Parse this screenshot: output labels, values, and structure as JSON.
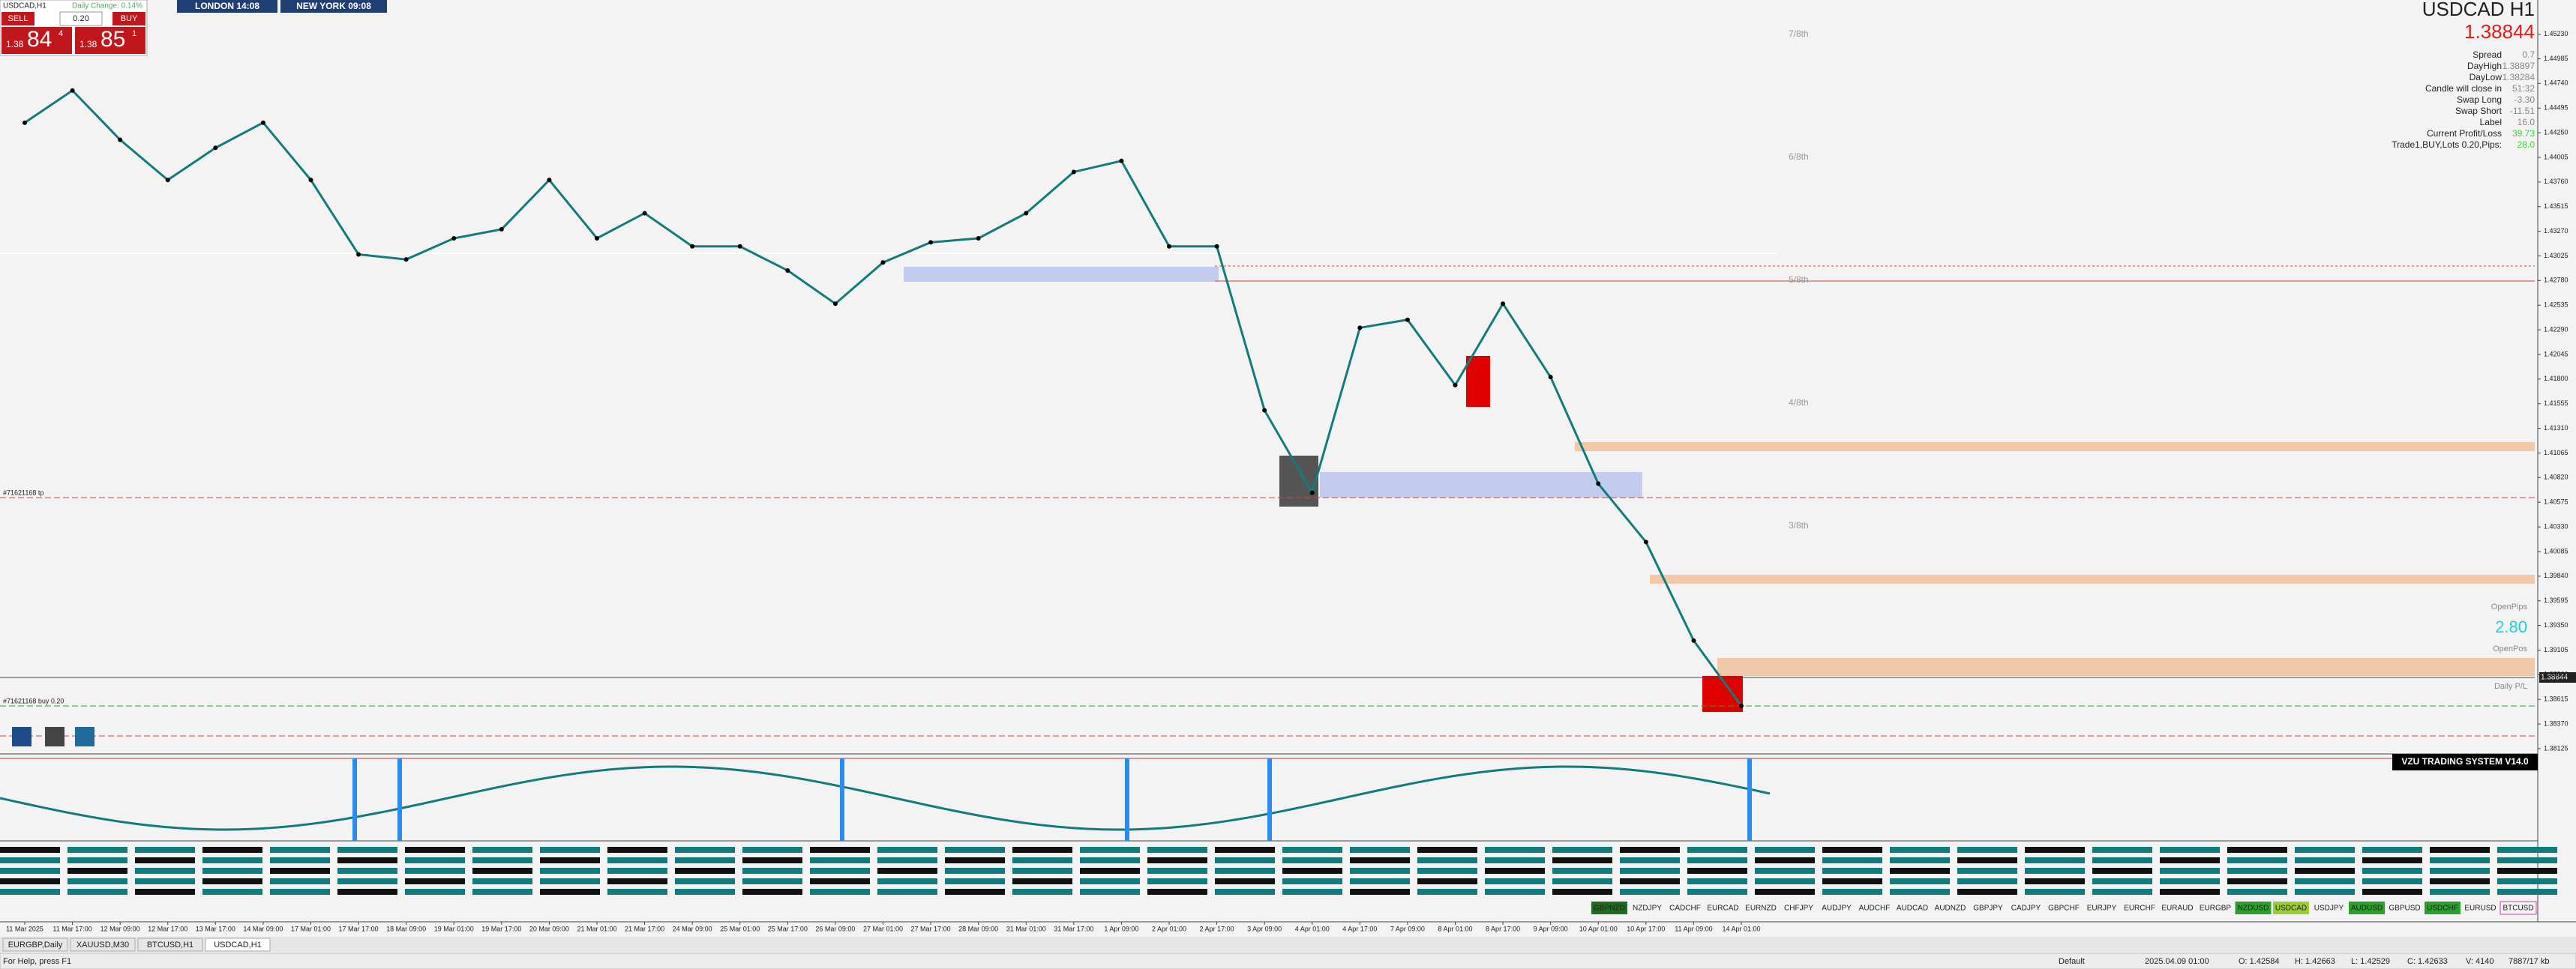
{
  "trade_panel": {
    "symbol": "USDCAD,H1",
    "daily_change": "Daily Change: 0.14%",
    "sell": "SELL",
    "buy": "BUY",
    "lots": "0.20",
    "sell_price": {
      "big": "1.38",
      "pips": "84",
      "point": "4"
    },
    "buy_price": {
      "big": "1.38",
      "pips": "85",
      "point": "1"
    }
  },
  "sessions": [
    "LONDON  14:08",
    "NEW YORK  09:08"
  ],
  "info": {
    "title": "USDCAD H1",
    "price": "1.38844",
    "rows": [
      [
        "Spread",
        "0.7"
      ],
      [
        "DayHigh",
        "1.38897"
      ],
      [
        "DayLow",
        "1.38284"
      ],
      [
        "Candle will close in",
        "51:32"
      ],
      [
        "Swap Long",
        "-3.30"
      ],
      [
        "Swap Short",
        "-11.51"
      ],
      [
        "Label",
        "16.0"
      ],
      [
        "Current Profit/Loss",
        "39.73"
      ],
      [
        "Trade1,BUY,Lots 0.20,Pips:",
        "28.0"
      ]
    ]
  },
  "fib_labels": [
    "7/8th",
    "6/8th",
    "5/8th",
    "4/8th",
    "3/8th"
  ],
  "order_labels": [
    "#71621168 tp",
    "#71621168 buy 0.20"
  ],
  "right_labels": [
    "OpenPips",
    "2.80",
    "OpenPos",
    "Daily P/L"
  ],
  "indicator_title": "VZU TRADING SYSTEM V14.0",
  "symbols": [
    "GBPNZD",
    "NZDJPY",
    "CADCHF",
    "EURCAD",
    "EURNZD",
    "CHFJPY",
    "AUDJPY",
    "AUDCHF",
    "AUDCAD",
    "AUDNZD",
    "GBPJPY",
    "CADJPY",
    "GBPCHF",
    "EURJPY",
    "EURCHF",
    "EURAUD",
    "EURGBP",
    "NZDUSD",
    "USDCAD",
    "USDJPY",
    "AUDUSD",
    "GBPUSD",
    "USDCHF",
    "EURUSD",
    "BTCUSD"
  ],
  "tabs": [
    "EURGBP,Daily",
    "XAUUSD,M30",
    "BTCUSD,H1",
    "USDCAD,H1"
  ],
  "status": [
    "For Help, press F1",
    "Default",
    "2025.04.09 01:00",
    "O: 1.42584",
    "H: 1.42663",
    "L: 1.42529",
    "C: 1.42633",
    "V: 4140",
    "7887/17 kb"
  ],
  "chart_data": {
    "type": "line",
    "color": "#127c7c",
    "categories": [
      "11 Mar 2025",
      "11 Mar 17:00",
      "12 Mar 09:00",
      "12 Mar 17:00",
      "13 Mar 17:00",
      "14 Mar 09:00",
      "17 Mar 01:00",
      "17 Mar 17:00",
      "18 Mar 09:00",
      "19 Mar 01:00",
      "19 Mar 17:00",
      "20 Mar 09:00",
      "21 Mar 01:00",
      "21 Mar 17:00",
      "24 Mar 09:00",
      "25 Mar 01:00",
      "25 Mar 17:00",
      "26 Mar 09:00",
      "27 Mar 01:00",
      "27 Mar 17:00",
      "28 Mar 09:00",
      "31 Mar 01:00",
      "31 Mar 17:00",
      "1 Apr 09:00",
      "2 Apr 01:00",
      "2 Apr 17:00",
      "3 Apr 09:00",
      "4 Apr 01:00",
      "4 Apr 17:00",
      "7 Apr 09:00",
      "8 Apr 01:00",
      "8 Apr 17:00",
      "9 Apr 09:00",
      "10 Apr 01:00",
      "10 Apr 17:00",
      "11 Apr 09:00",
      "14 Apr 01:00"
    ],
    "values": [
      1.4435,
      1.4467,
      1.4418,
      1.4378,
      1.441,
      1.4435,
      1.4378,
      1.4304,
      1.4299,
      1.432,
      1.4329,
      1.4378,
      1.432,
      1.4345,
      1.4312,
      1.4312,
      1.4288,
      1.4255,
      1.4296,
      1.4316,
      1.432,
      1.4345,
      1.4386,
      1.4397,
      1.4312,
      1.4312,
      1.4149,
      1.4067,
      1.4231,
      1.4239,
      1.4174,
      1.4255,
      1.4182,
      1.4076,
      1.4018,
      1.392,
      1.3855
    ],
    "ylim": [
      1.3808,
      1.4557
    ],
    "yticks": [
      1.38125,
      {
        "value": 1.3837,
        "label": "1.38370"
      },
      1.38615,
      {
        "value": 1.3886,
        "label": "1.38860"
      },
      1.39105,
      {
        "value": 1.3935,
        "label": "1.39350"
      },
      1.39595,
      {
        "value": 1.3984,
        "label": "1.39840"
      },
      1.40085,
      {
        "value": 1.4033,
        "label": "1.40330"
      },
      1.40575,
      {
        "value": 1.4082,
        "label": "1.40820"
      },
      1.41065,
      {
        "value": 1.4131,
        "label": "1.41310"
      },
      1.41555,
      {
        "value": 1.418,
        "label": "1.41800"
      },
      1.42045,
      {
        "value": 1.4229,
        "label": "1.42290"
      },
      1.42535,
      {
        "value": 1.4278,
        "label": "1.42780"
      },
      1.43025,
      {
        "value": 1.4327,
        "label": "1.43270"
      },
      1.43515,
      {
        "value": 1.4376,
        "label": "1.43760"
      },
      1.44005,
      {
        "value": 1.4425,
        "label": "1.44250"
      },
      1.44495,
      {
        "value": 1.4474,
        "label": "1.44740"
      },
      1.44985,
      {
        "value": 1.4523,
        "label": "1.45230"
      }
    ]
  }
}
